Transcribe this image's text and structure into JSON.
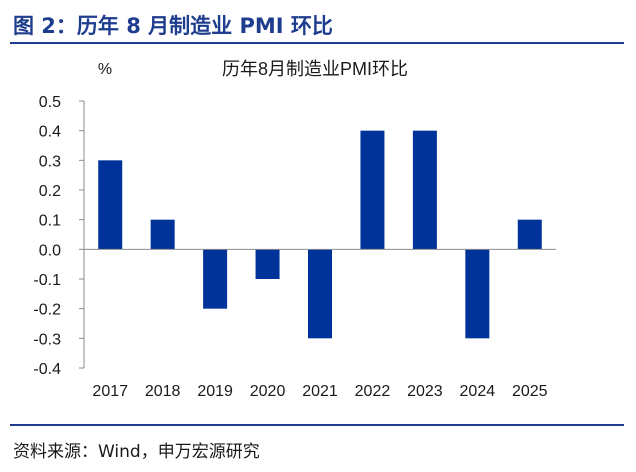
{
  "figure_title": "图 2：历年 8 月制造业 PMI 环比",
  "source_note": "资料来源：Wind，申万宏源研究",
  "colors": {
    "accent": "#1f3d8f",
    "bar": "#003399"
  },
  "chart_data": {
    "type": "bar",
    "title": "历年8月制造业PMI环比",
    "unit_label": "%",
    "categories": [
      "2017",
      "2018",
      "2019",
      "2020",
      "2021",
      "2022",
      "2023",
      "2024",
      "2025"
    ],
    "values": [
      0.3,
      0.1,
      -0.2,
      -0.1,
      -0.3,
      0.4,
      0.4,
      -0.3,
      0.1
    ],
    "ylim": [
      -0.4,
      0.5
    ],
    "yticks": [
      0.5,
      0.4,
      0.3,
      0.2,
      0.1,
      0.0,
      -0.1,
      -0.2,
      -0.3,
      -0.4
    ],
    "ytick_labels": [
      "0.5",
      "0.4",
      "0.3",
      "0.2",
      "0.1",
      "0.0",
      "-0.1",
      "-0.2",
      "-0.3",
      "-0.4"
    ],
    "grid": false,
    "legend": "none"
  }
}
